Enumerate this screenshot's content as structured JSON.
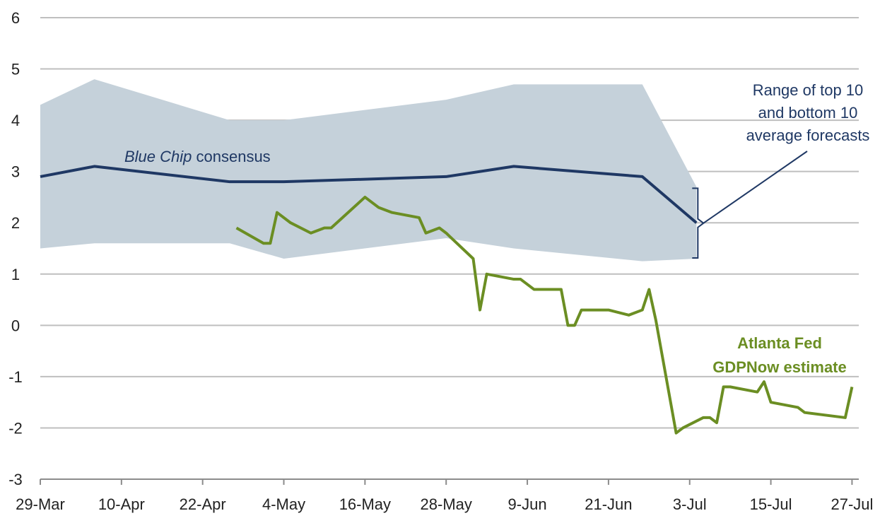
{
  "chart_data": {
    "type": "line",
    "ylim": [
      -3,
      6
    ],
    "y_ticks": [
      6,
      5,
      4,
      3,
      2,
      1,
      0,
      -1,
      -2,
      -3
    ],
    "y_tick_labels": [
      "6",
      "5",
      "4",
      "3",
      "2",
      "1",
      "0",
      "-1",
      "-2",
      "-3"
    ],
    "x_ticks": [
      "2018-03-29",
      "2018-04-10",
      "2018-04-22",
      "2018-05-04",
      "2018-05-16",
      "2018-05-28",
      "2018-06-09",
      "2018-06-21",
      "2018-07-03",
      "2018-07-15",
      "2018-07-27"
    ],
    "x_tick_labels": [
      "29-Mar",
      "10-Apr",
      "22-Apr",
      "4-May",
      "16-May",
      "28-May",
      "9-Jun",
      "21-Jun",
      "3-Jul",
      "15-Jul",
      "27-Jul"
    ],
    "xlim": [
      "2018-03-29",
      "2018-07-28"
    ],
    "grid": "horizontal",
    "colors": {
      "blue_chip": "#1f3864",
      "gdpnow": "#6b8e23",
      "range_fill": "#c5d1da",
      "grid": "#bfbfbf",
      "annotation": "#1f3864"
    },
    "range_band": {
      "x": [
        "2018-03-29",
        "2018-04-06",
        "2018-04-26",
        "2018-05-04",
        "2018-05-28",
        "2018-06-07",
        "2018-06-26",
        "2018-07-04"
      ],
      "upper": [
        4.3,
        4.8,
        4.0,
        4.0,
        4.4,
        4.7,
        4.7,
        2.7
      ],
      "lower": [
        1.5,
        1.6,
        1.6,
        1.3,
        1.7,
        1.5,
        1.25,
        1.3
      ]
    },
    "series": [
      {
        "name": "Blue Chip consensus",
        "x": [
          "2018-03-29",
          "2018-04-06",
          "2018-04-26",
          "2018-05-04",
          "2018-05-28",
          "2018-06-07",
          "2018-06-26",
          "2018-07-04"
        ],
        "values": [
          2.9,
          3.1,
          2.8,
          2.8,
          2.9,
          3.1,
          2.9,
          2.0
        ]
      },
      {
        "name": "Atlanta Fed GDPNow estimate",
        "x": [
          "2018-04-27",
          "2018-05-01",
          "2018-05-02",
          "2018-05-03",
          "2018-05-05",
          "2018-05-08",
          "2018-05-10",
          "2018-05-11",
          "2018-05-16",
          "2018-05-17",
          "2018-05-18",
          "2018-05-20",
          "2018-05-24",
          "2018-05-25",
          "2018-05-27",
          "2018-05-28",
          "2018-06-01",
          "2018-06-02",
          "2018-06-03",
          "2018-06-07",
          "2018-06-08",
          "2018-06-10",
          "2018-06-14",
          "2018-06-15",
          "2018-06-16",
          "2018-06-17",
          "2018-06-21",
          "2018-06-24",
          "2018-06-26",
          "2018-06-27",
          "2018-06-28",
          "2018-07-01",
          "2018-07-02",
          "2018-07-05",
          "2018-07-06",
          "2018-07-07",
          "2018-07-08",
          "2018-07-09",
          "2018-07-13",
          "2018-07-14",
          "2018-07-15",
          "2018-07-19",
          "2018-07-20",
          "2018-07-26",
          "2018-07-27"
        ],
        "values": [
          1.9,
          1.6,
          1.6,
          2.2,
          2.0,
          1.8,
          1.9,
          1.9,
          2.5,
          2.4,
          2.3,
          2.2,
          2.1,
          1.8,
          1.9,
          1.8,
          1.3,
          0.3,
          1.0,
          0.9,
          0.9,
          0.7,
          0.7,
          0.0,
          0.0,
          0.3,
          0.3,
          0.2,
          0.3,
          0.7,
          0.1,
          -2.1,
          -2.0,
          -1.8,
          -1.8,
          -1.9,
          -1.2,
          -1.2,
          -1.3,
          -1.1,
          -1.5,
          -1.6,
          -1.7,
          -1.8,
          -1.2
        ]
      }
    ]
  },
  "annotations": {
    "blue_chip_italic": "Blue Chip",
    "blue_chip_rest": " consensus",
    "range_line1": "Range of top 10",
    "range_line2": "and bottom 10",
    "range_line3": "average forecasts",
    "gdpnow_line1": "Atlanta Fed",
    "gdpnow_line2": "GDPNow estimate"
  }
}
